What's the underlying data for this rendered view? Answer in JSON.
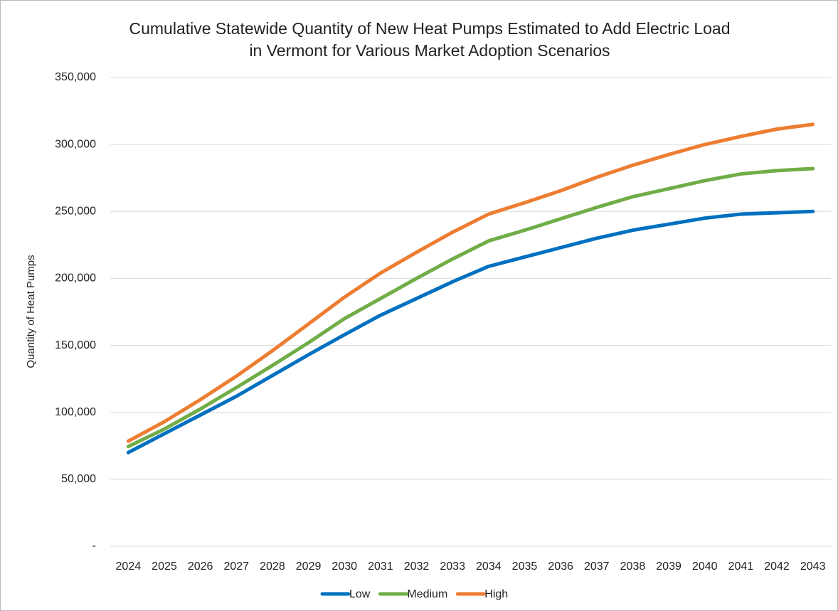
{
  "chart_data": {
    "type": "line",
    "title": [
      "Cumulative Statewide Quantity of New Heat Pumps Estimated to Add Electric Load",
      "in Vermont for Various Market Adoption Scenarios"
    ],
    "y_label": "Quantity of Heat Pumps",
    "categories": [
      "2024",
      "2025",
      "2026",
      "2027",
      "2028",
      "2029",
      "2030",
      "2031",
      "2032",
      "2033",
      "2034",
      "2035",
      "2036",
      "2037",
      "2038",
      "2039",
      "2040",
      "2041",
      "2042",
      "2043"
    ],
    "series": [
      {
        "name": "Low",
        "color": "#0070c0",
        "values": [
          70000,
          84000,
          98000,
          112000,
          127500,
          143000,
          158000,
          172500,
          185000,
          197500,
          209000,
          216000,
          223000,
          230000,
          236000,
          240500,
          245000,
          248000,
          249000,
          250000
        ]
      },
      {
        "name": "Medium",
        "color": "#70ad47",
        "values": [
          74500,
          87500,
          102500,
          118500,
          135000,
          152000,
          170000,
          185000,
          200000,
          214500,
          228000,
          236000,
          244500,
          253000,
          261000,
          267000,
          273000,
          278000,
          280500,
          282000
        ]
      },
      {
        "name": "High",
        "color": "#ed7d31",
        "values": [
          78500,
          93000,
          109500,
          127000,
          146000,
          166000,
          186000,
          204000,
          219500,
          234500,
          248000,
          256500,
          265500,
          275500,
          284500,
          292500,
          300000,
          306000,
          311500,
          315000
        ]
      }
    ],
    "ylim": [
      0,
      350000
    ],
    "yticks": [
      {
        "value": 0,
        "label": "-"
      },
      {
        "value": 50000,
        "label": "50,000"
      },
      {
        "value": 100000,
        "label": "100,000"
      },
      {
        "value": 150000,
        "label": "150,000"
      },
      {
        "value": 200000,
        "label": "200,000"
      },
      {
        "value": 250000,
        "label": "250,000"
      },
      {
        "value": 300000,
        "label": "300,000"
      },
      {
        "value": 350000,
        "label": "350,000"
      }
    ],
    "grid": true,
    "legend": "bottom"
  }
}
